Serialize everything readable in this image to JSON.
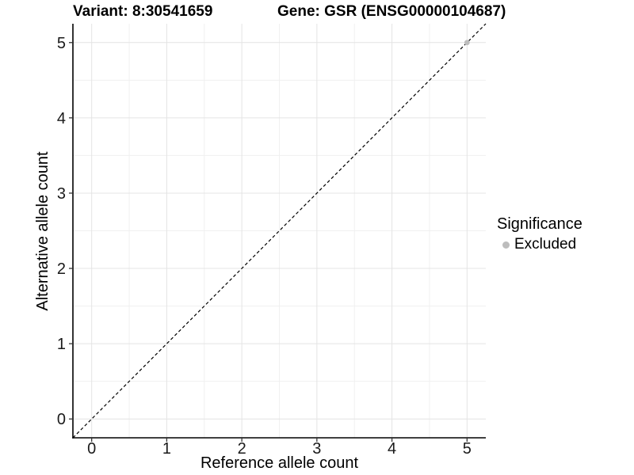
{
  "chart_data": {
    "type": "scatter",
    "titles": {
      "left": "Variant: 8:30541659",
      "right": "Gene: GSR (ENSG00000104687)"
    },
    "xlabel": "Reference allele count",
    "ylabel": "Alternative allele count",
    "xlim": [
      -0.25,
      5.25
    ],
    "ylim": [
      -0.25,
      5.25
    ],
    "x_ticks": [
      0,
      1,
      2,
      3,
      4,
      5
    ],
    "y_ticks": [
      0,
      1,
      2,
      3,
      4,
      5
    ],
    "grid": {
      "minor_step": 0.5,
      "major_color": "#e4e4e4",
      "minor_color": "#f0f0f0"
    },
    "reference_line": {
      "type": "identity",
      "slope": 1,
      "intercept": 0,
      "style": "dashed",
      "color": "#000000"
    },
    "series": [
      {
        "name": "Excluded",
        "color": "#bdbdbd",
        "points": [
          {
            "x": 5,
            "y": 5
          }
        ]
      }
    ],
    "legend": {
      "title": "Significance",
      "position": "right",
      "items": [
        {
          "label": "Excluded",
          "color": "#bdbdbd"
        }
      ]
    }
  },
  "style": {
    "axis_line_color": "#000000",
    "tick_color": "#333333",
    "tick_label_color": "#1a1a1a",
    "background": "#ffffff"
  }
}
